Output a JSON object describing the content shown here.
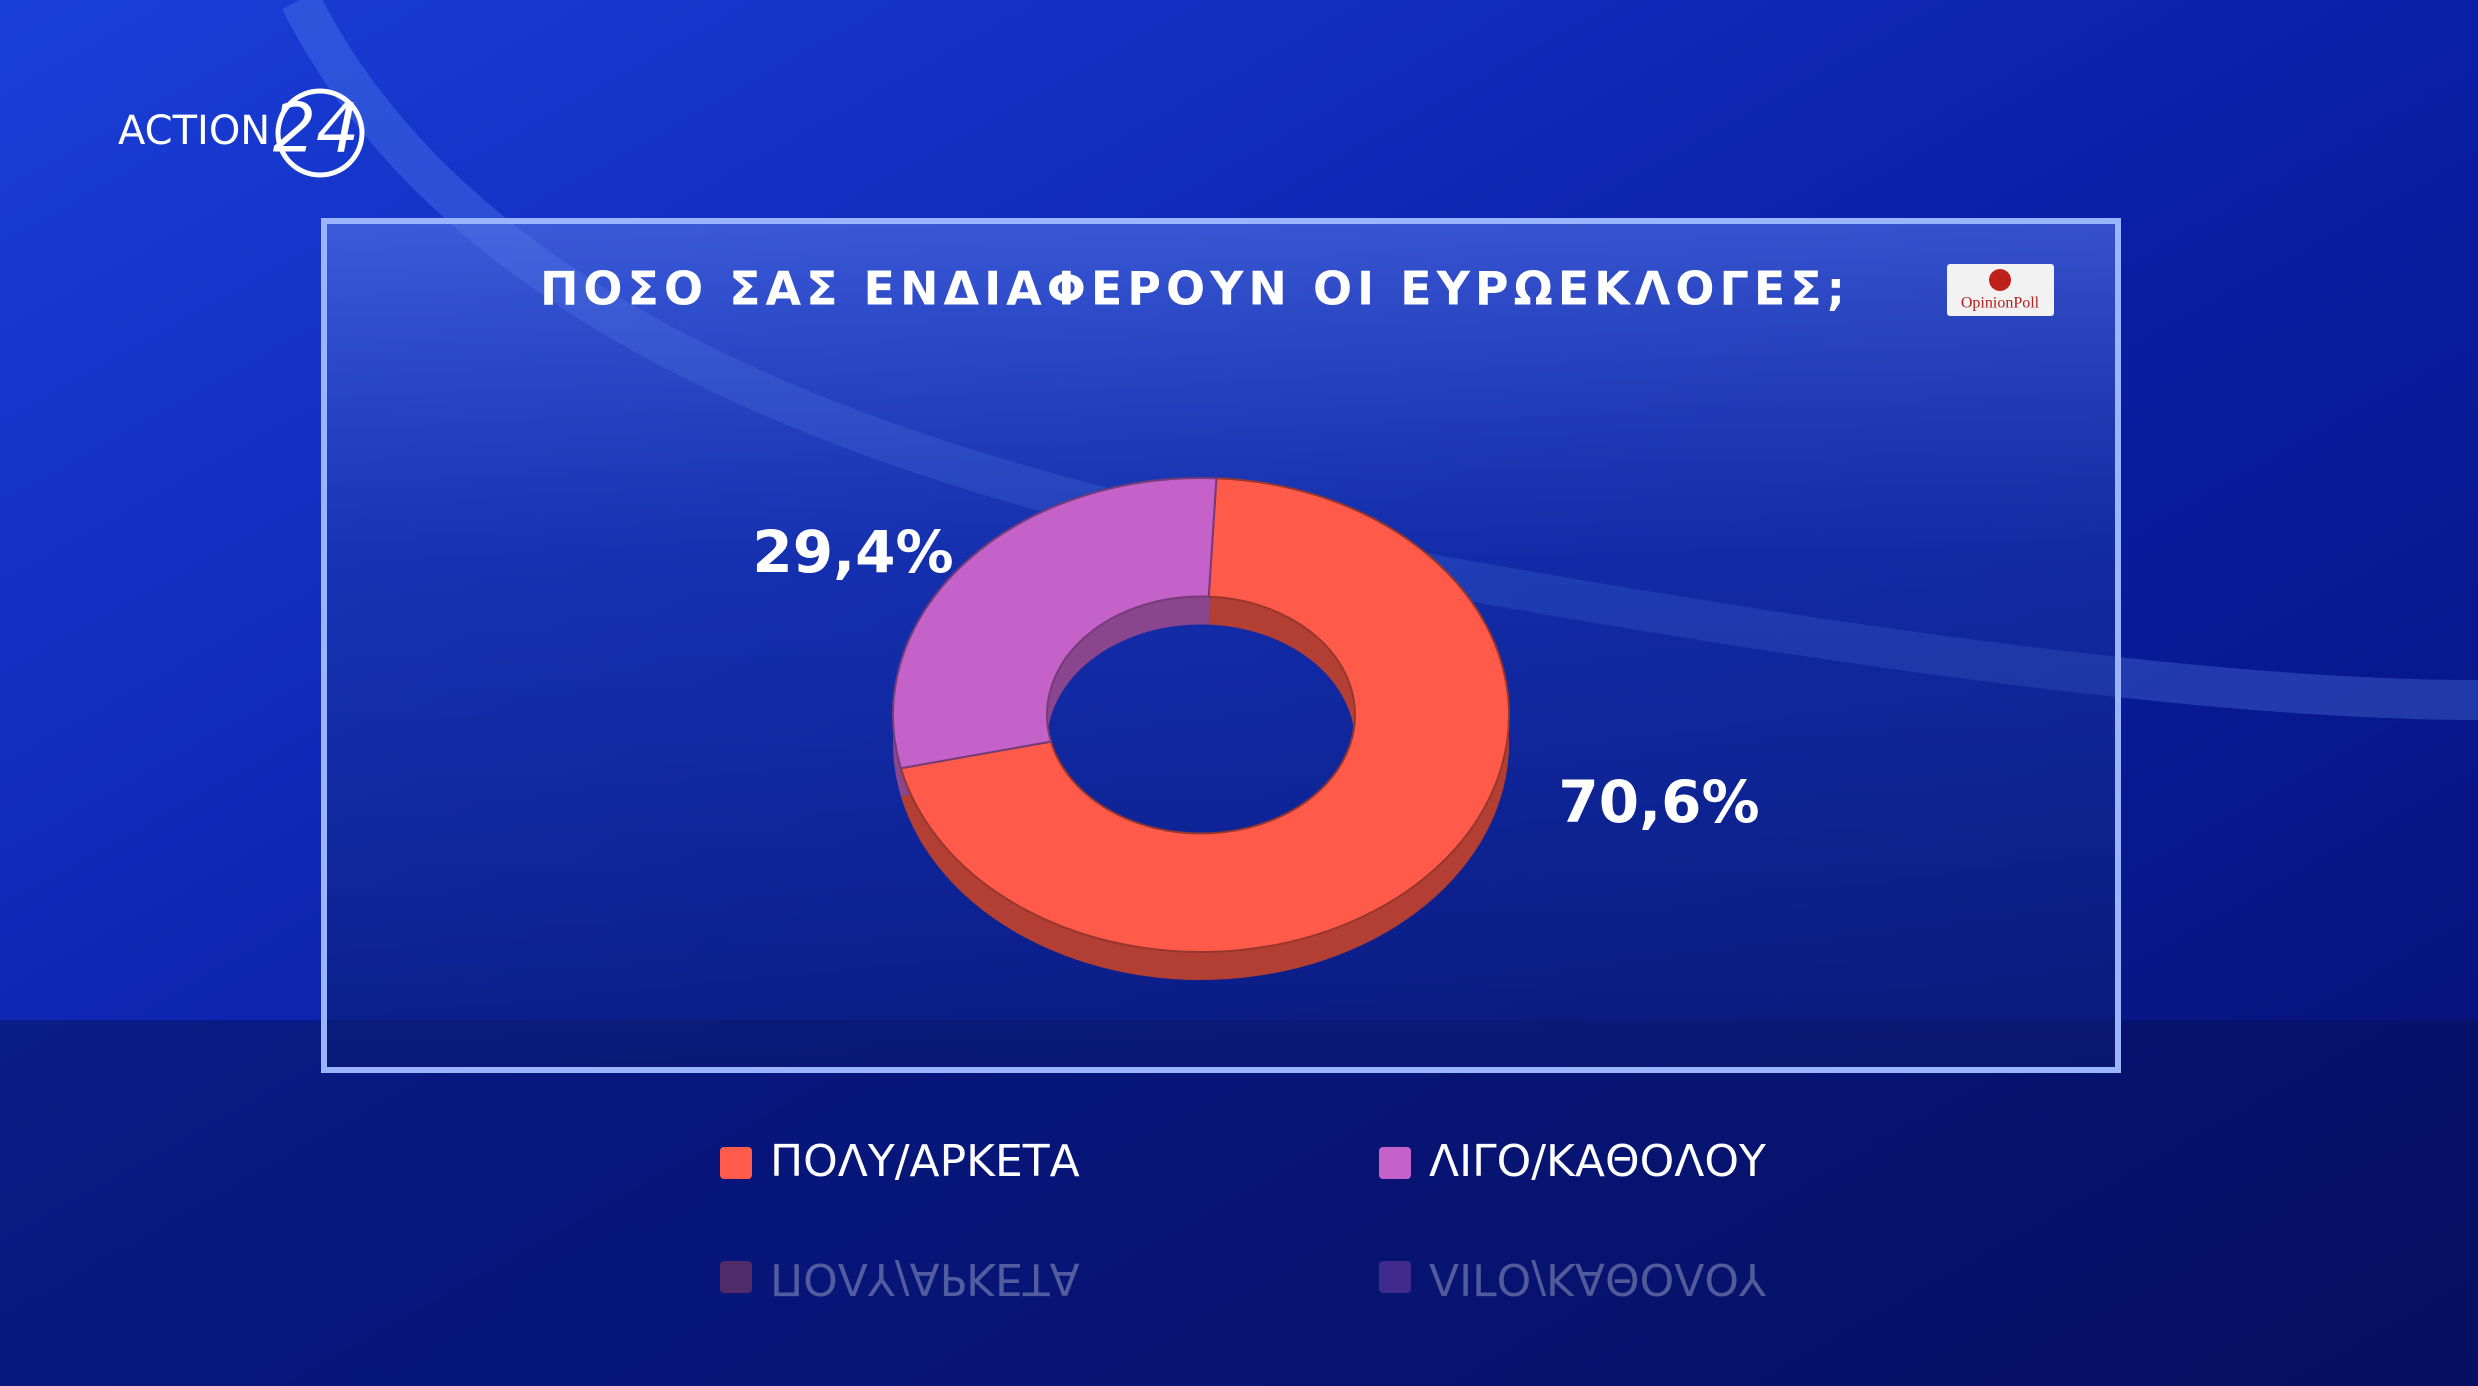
{
  "branding": {
    "channel": "ACTION",
    "channel_number": "24",
    "pollster": "OpinionPoll"
  },
  "chart_data": {
    "type": "donut",
    "title": "ΠΟΣΟ ΣΑΣ ΕΝΔΙΑΦΕΡΟΥΝ ΟΙ ΕΥΡΩΕΚΛΟΓΕΣ;",
    "categories": [
      "ΠΟΛΥ/ΑΡΚΕΤΑ",
      "ΛΙΓΟ/ΚΑΘΟΛΟΥ"
    ],
    "values": [
      70.6,
      29.4
    ],
    "value_labels": [
      "70,6%",
      "29,4%"
    ],
    "colors": [
      "#ff5a4a",
      "#c462c9"
    ],
    "legend": "bottom"
  }
}
